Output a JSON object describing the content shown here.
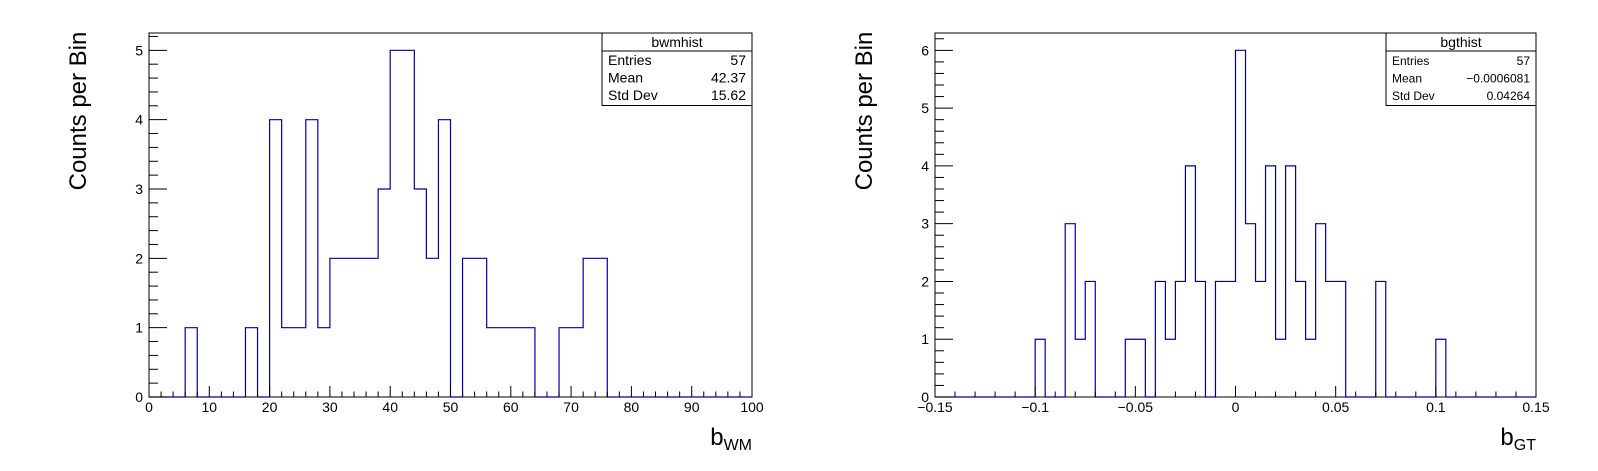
{
  "chart_data": [
    {
      "type": "histogram",
      "ylabel": "Counts per Bin",
      "xlabel_main": "b",
      "xlabel_sub": "WM",
      "xlim": [
        0,
        100
      ],
      "ylim": [
        0,
        5.25
      ],
      "bin_width": 2,
      "x_ticks": [
        "0",
        "10",
        "20",
        "30",
        "40",
        "50",
        "60",
        "70",
        "80",
        "90",
        "100"
      ],
      "x_tick_values": [
        0,
        10,
        20,
        30,
        40,
        50,
        60,
        70,
        80,
        90,
        100
      ],
      "y_ticks": [
        "0",
        "1",
        "2",
        "3",
        "4",
        "5"
      ],
      "y_tick_values": [
        0,
        1,
        2,
        3,
        4,
        5
      ],
      "bins": [
        {
          "x": 6,
          "count": 1
        },
        {
          "x": 16,
          "count": 1
        },
        {
          "x": 20,
          "count": 4
        },
        {
          "x": 22,
          "count": 1
        },
        {
          "x": 24,
          "count": 1
        },
        {
          "x": 26,
          "count": 4
        },
        {
          "x": 28,
          "count": 1
        },
        {
          "x": 30,
          "count": 2
        },
        {
          "x": 32,
          "count": 2
        },
        {
          "x": 34,
          "count": 2
        },
        {
          "x": 36,
          "count": 2
        },
        {
          "x": 38,
          "count": 3
        },
        {
          "x": 40,
          "count": 5
        },
        {
          "x": 42,
          "count": 5
        },
        {
          "x": 44,
          "count": 3
        },
        {
          "x": 46,
          "count": 2
        },
        {
          "x": 48,
          "count": 4
        },
        {
          "x": 52,
          "count": 2
        },
        {
          "x": 54,
          "count": 2
        },
        {
          "x": 56,
          "count": 1
        },
        {
          "x": 58,
          "count": 1
        },
        {
          "x": 60,
          "count": 1
        },
        {
          "x": 62,
          "count": 1
        },
        {
          "x": 68,
          "count": 1
        },
        {
          "x": 70,
          "count": 1
        },
        {
          "x": 72,
          "count": 2
        },
        {
          "x": 74,
          "count": 2
        }
      ],
      "stats": {
        "title": "bwmhist",
        "rows": [
          {
            "label": "Entries",
            "value": "57"
          },
          {
            "label": "Mean",
            "value": "42.37"
          },
          {
            "label": "Std Dev",
            "value": "15.62"
          }
        ]
      },
      "line_color": "#0000aa"
    },
    {
      "type": "histogram",
      "ylabel": "Counts per Bin",
      "xlabel_main": "b",
      "xlabel_sub": "GT",
      "xlim": [
        -0.15,
        0.15
      ],
      "ylim": [
        0,
        6.3
      ],
      "bin_width": 0.005,
      "x_ticks": [
        "−0.15",
        "−0.1",
        "−0.05",
        "0",
        "0.05",
        "0.1",
        "0.15"
      ],
      "x_tick_values": [
        -0.15,
        -0.1,
        -0.05,
        0,
        0.05,
        0.1,
        0.15
      ],
      "y_ticks": [
        "0",
        "1",
        "2",
        "3",
        "4",
        "5",
        "6"
      ],
      "y_tick_values": [
        0,
        1,
        2,
        3,
        4,
        5,
        6
      ],
      "bins": [
        {
          "x": -0.1,
          "count": 1
        },
        {
          "x": -0.085,
          "count": 3
        },
        {
          "x": -0.08,
          "count": 1
        },
        {
          "x": -0.075,
          "count": 2
        },
        {
          "x": -0.055,
          "count": 1
        },
        {
          "x": -0.05,
          "count": 1
        },
        {
          "x": -0.04,
          "count": 2
        },
        {
          "x": -0.035,
          "count": 1
        },
        {
          "x": -0.03,
          "count": 2
        },
        {
          "x": -0.025,
          "count": 4
        },
        {
          "x": -0.02,
          "count": 2
        },
        {
          "x": -0.01,
          "count": 2
        },
        {
          "x": -0.005,
          "count": 2
        },
        {
          "x": 0.0,
          "count": 6
        },
        {
          "x": 0.005,
          "count": 3
        },
        {
          "x": 0.01,
          "count": 2
        },
        {
          "x": 0.015,
          "count": 4
        },
        {
          "x": 0.02,
          "count": 1
        },
        {
          "x": 0.025,
          "count": 4
        },
        {
          "x": 0.03,
          "count": 2
        },
        {
          "x": 0.035,
          "count": 1
        },
        {
          "x": 0.04,
          "count": 3
        },
        {
          "x": 0.045,
          "count": 2
        },
        {
          "x": 0.05,
          "count": 2
        },
        {
          "x": 0.07,
          "count": 2
        },
        {
          "x": 0.1,
          "count": 1
        }
      ],
      "stats": {
        "title": "bgthist",
        "rows": [
          {
            "label": "Entries",
            "value": "57"
          },
          {
            "label": "Mean",
            "value": "−0.0006081"
          },
          {
            "label": "Std Dev",
            "value": "0.04264"
          }
        ]
      },
      "line_color": "#0000aa"
    }
  ]
}
